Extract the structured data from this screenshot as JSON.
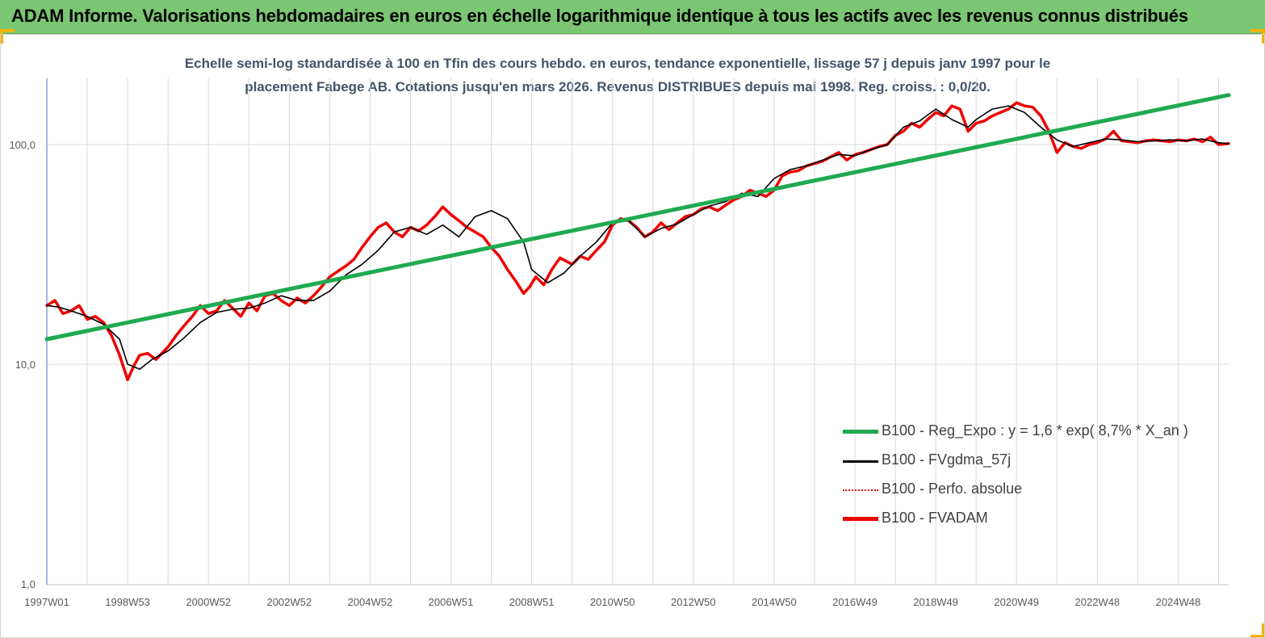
{
  "header": {
    "title": "ADAM Informe. Valorisations hebdomadaires en euros en échelle logarithmique identique à tous les actifs avec les revenus connus distribués"
  },
  "chart_data": {
    "type": "line",
    "title_line1": "Echelle semi-log standardisée à 100 en Tfin des cours hebdo. en euros, tendance exponentielle, lissage 57 j depuis janv 1997 pour le",
    "title_line2": "placement Fabege AB. Cotations jusqu'en mars 2026. Revenus DISTRIBUES depuis mai 1998. Reg. croiss. : 0,0/20.",
    "y_scale": "log",
    "ylim": [
      1,
      200
    ],
    "y_ticks": [
      {
        "value": 1,
        "label": "1,0"
      },
      {
        "value": 10,
        "label": "10,0"
      },
      {
        "value": 100,
        "label": "100,0"
      }
    ],
    "x_range": [
      1997.0,
      2026.25
    ],
    "x_ticks": [
      {
        "year": 1997.0,
        "label": "1997W01"
      },
      {
        "year": 1999.0,
        "label": "1998W53"
      },
      {
        "year": 2001.0,
        "label": "2000W52"
      },
      {
        "year": 2003.0,
        "label": "2002W52"
      },
      {
        "year": 2005.0,
        "label": "2004W52"
      },
      {
        "year": 2007.0,
        "label": "2006W51"
      },
      {
        "year": 2009.0,
        "label": "2008W51"
      },
      {
        "year": 2011.0,
        "label": "2010W50"
      },
      {
        "year": 2013.0,
        "label": "2012W50"
      },
      {
        "year": 2015.0,
        "label": "2014W50"
      },
      {
        "year": 2017.0,
        "label": "2016W49"
      },
      {
        "year": 2019.0,
        "label": "2018W49"
      },
      {
        "year": 2021.0,
        "label": "2020W49"
      },
      {
        "year": 2023.0,
        "label": "2022W48"
      },
      {
        "year": 2025.0,
        "label": "2024W48"
      }
    ],
    "grid": "vertical",
    "legend_position": "bottom-right",
    "series": [
      {
        "name": "B100 - Reg_Expo : y = 1,6 * exp( 8,7% *  X_an )",
        "color": "#1faa50",
        "style": "solid",
        "x": [
          1997.0,
          2026.25
        ],
        "y": [
          13,
          168
        ]
      },
      {
        "name": "B100 - FVgdma_57j",
        "color": "#000000",
        "style": "solid",
        "x": [
          1997.0,
          1997.3,
          1997.6,
          1998.0,
          1998.4,
          1998.8,
          1999.0,
          1999.3,
          1999.6,
          2000.0,
          2000.4,
          2000.8,
          2001.2,
          2001.6,
          2002.0,
          2002.4,
          2002.8,
          2003.2,
          2003.6,
          2004.0,
          2004.4,
          2004.8,
          2005.2,
          2005.6,
          2006.0,
          2006.4,
          2006.8,
          2007.2,
          2007.6,
          2008.0,
          2008.4,
          2008.8,
          2009.0,
          2009.4,
          2009.8,
          2010.2,
          2010.6,
          2011.0,
          2011.4,
          2011.8,
          2012.2,
          2012.6,
          2013.0,
          2013.4,
          2013.8,
          2014.2,
          2014.6,
          2015.0,
          2015.4,
          2015.8,
          2016.2,
          2016.6,
          2017.0,
          2017.4,
          2017.8,
          2018.2,
          2018.6,
          2019.0,
          2019.4,
          2019.8,
          2020.0,
          2020.4,
          2020.8,
          2021.2,
          2021.6,
          2022.0,
          2022.4,
          2022.8,
          2023.2,
          2023.6,
          2024.0,
          2024.4,
          2024.8,
          2025.2,
          2025.6,
          2026.0,
          2026.25
        ],
        "y": [
          18.5,
          18.2,
          17.5,
          16.5,
          15.2,
          13.0,
          10.0,
          9.5,
          10.5,
          11.5,
          13.2,
          15.5,
          17.2,
          17.8,
          18.0,
          19.0,
          20.5,
          19.5,
          19.5,
          21.5,
          25.5,
          28.5,
          33.0,
          40.0,
          42.0,
          39.0,
          43.0,
          38.0,
          47.0,
          50.0,
          46.0,
          36.0,
          27.0,
          23.5,
          26.0,
          31.0,
          36.0,
          44.0,
          45.0,
          38.0,
          41.5,
          43.5,
          48.0,
          52.5,
          55.0,
          60.0,
          58.0,
          70.0,
          77.0,
          80.0,
          85.0,
          90.0,
          89.0,
          95.0,
          100.0,
          120.0,
          128.0,
          145.0,
          130.0,
          120.0,
          130.0,
          145.0,
          150.0,
          140.0,
          120.0,
          105.0,
          98.0,
          102.0,
          106.0,
          105.0,
          103.0,
          104.0,
          105.0,
          104.0,
          106.0,
          102.0,
          101.0
        ]
      },
      {
        "name": "B100 - Perfo. absolue",
        "color": "#e00000",
        "style": "dotted",
        "x": [],
        "y": []
      },
      {
        "name": "B100 - FVADAM",
        "color": "#ee0000",
        "style": "solid",
        "x": [
          1997.0,
          1997.2,
          1997.4,
          1997.6,
          1997.8,
          1998.0,
          1998.2,
          1998.4,
          1998.6,
          1998.8,
          1999.0,
          1999.15,
          1999.3,
          1999.5,
          1999.7,
          2000.0,
          2000.2,
          2000.4,
          2000.6,
          2000.8,
          2001.0,
          2001.2,
          2001.4,
          2001.6,
          2001.8,
          2002.0,
          2002.2,
          2002.4,
          2002.6,
          2002.8,
          2003.0,
          2003.2,
          2003.4,
          2003.6,
          2003.8,
          2004.0,
          2004.2,
          2004.4,
          2004.6,
          2004.8,
          2005.0,
          2005.2,
          2005.4,
          2005.6,
          2005.8,
          2006.0,
          2006.2,
          2006.4,
          2006.6,
          2006.8,
          2007.0,
          2007.2,
          2007.4,
          2007.6,
          2007.8,
          2008.0,
          2008.2,
          2008.4,
          2008.6,
          2008.8,
          2008.95,
          2009.1,
          2009.3,
          2009.5,
          2009.7,
          2010.0,
          2010.2,
          2010.4,
          2010.6,
          2010.8,
          2011.0,
          2011.2,
          2011.4,
          2011.6,
          2011.8,
          2012.0,
          2012.2,
          2012.4,
          2012.6,
          2012.8,
          2013.0,
          2013.2,
          2013.4,
          2013.6,
          2013.8,
          2014.0,
          2014.2,
          2014.4,
          2014.6,
          2014.8,
          2015.0,
          2015.2,
          2015.4,
          2015.6,
          2015.8,
          2016.0,
          2016.2,
          2016.4,
          2016.6,
          2016.8,
          2017.0,
          2017.2,
          2017.4,
          2017.6,
          2017.8,
          2018.0,
          2018.2,
          2018.4,
          2018.6,
          2018.8,
          2019.0,
          2019.2,
          2019.4,
          2019.6,
          2019.8,
          2020.0,
          2020.2,
          2020.4,
          2020.6,
          2020.8,
          2021.0,
          2021.2,
          2021.4,
          2021.6,
          2021.8,
          2022.0,
          2022.2,
          2022.4,
          2022.6,
          2022.8,
          2023.0,
          2023.2,
          2023.4,
          2023.6,
          2023.8,
          2024.0,
          2024.2,
          2024.4,
          2024.6,
          2024.8,
          2025.0,
          2025.2,
          2025.4,
          2025.6,
          2025.8,
          2026.0,
          2026.25
        ],
        "y": [
          18.5,
          19.5,
          17.0,
          17.5,
          18.5,
          16.0,
          16.5,
          15.5,
          13.5,
          11.0,
          8.5,
          9.8,
          11.0,
          11.2,
          10.5,
          12.0,
          13.5,
          15.0,
          16.5,
          18.5,
          17.0,
          17.5,
          19.5,
          18.0,
          16.5,
          19.0,
          17.5,
          20.5,
          21.0,
          19.5,
          18.5,
          20.0,
          19.0,
          20.5,
          22.5,
          25.0,
          26.5,
          28.0,
          30.0,
          34.0,
          38.0,
          42.0,
          44.0,
          40.0,
          38.0,
          42.0,
          40.5,
          43.0,
          47.0,
          52.0,
          48.0,
          45.0,
          42.0,
          40.0,
          38.0,
          34.0,
          31.0,
          27.0,
          24.0,
          21.0,
          22.5,
          25.0,
          23.0,
          27.0,
          30.5,
          28.5,
          31.0,
          30.0,
          33.0,
          36.0,
          43.0,
          46.0,
          45.0,
          42.0,
          38.0,
          40.0,
          44.0,
          41.0,
          44.0,
          47.0,
          48.0,
          51.0,
          52.0,
          50.0,
          53.0,
          56.0,
          58.0,
          62.0,
          60.0,
          58.0,
          62.0,
          72.0,
          75.0,
          76.0,
          80.0,
          82.0,
          84.0,
          88.0,
          92.0,
          85.0,
          90.0,
          92.0,
          95.0,
          98.0,
          100.0,
          110.0,
          115.0,
          125.0,
          120.0,
          130.0,
          140.0,
          135.0,
          150.0,
          145.0,
          115.0,
          125.0,
          128.0,
          135.0,
          140.0,
          145.0,
          155.0,
          150.0,
          148.0,
          135.0,
          115.0,
          92.0,
          102.0,
          98.0,
          96.0,
          100.0,
          102.0,
          106.0,
          115.0,
          104.0,
          103.0,
          102.0,
          104.0,
          105.0,
          104.0,
          103.0,
          105.0,
          104.0,
          106.0,
          103.0,
          108.0,
          100.0,
          101.0
        ]
      }
    ]
  }
}
